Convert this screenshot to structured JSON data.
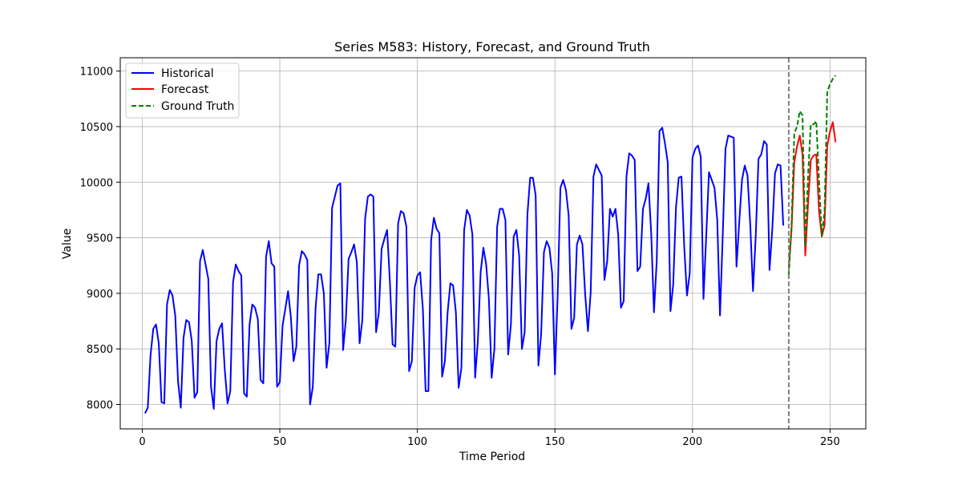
{
  "chart_data": {
    "type": "line",
    "title": "Series M583: History, Forecast, and Ground Truth",
    "xlabel": "Time Period",
    "ylabel": "Value",
    "xlim": [
      -8,
      263
    ],
    "ylim": [
      7780,
      11120
    ],
    "xticks": [
      0,
      50,
      100,
      150,
      200,
      250
    ],
    "xtick_labels": [
      "0",
      "50",
      "100",
      "150",
      "200",
      "250"
    ],
    "yticks": [
      8000,
      8500,
      9000,
      9500,
      10000,
      10500,
      11000
    ],
    "ytick_labels": [
      "8000",
      "8500",
      "9000",
      "9500",
      "10000",
      "10500",
      "11000"
    ],
    "grid": true,
    "legend_position": "top-left",
    "forecast_start_marker": 235,
    "series": [
      {
        "name": "Historical",
        "color": "#0000ff",
        "style": "solid",
        "x_start": 1,
        "values": [
          7920,
          7970,
          8440,
          8680,
          8720,
          8550,
          8020,
          8010,
          8900,
          9030,
          8980,
          8800,
          8210,
          7970,
          8600,
          8760,
          8740,
          8570,
          8060,
          8110,
          9290,
          9390,
          9260,
          9130,
          8160,
          7960,
          8570,
          8680,
          8730,
          8310,
          8010,
          8120,
          9100,
          9260,
          9200,
          9160,
          8100,
          8070,
          8720,
          8900,
          8870,
          8770,
          8220,
          8190,
          9330,
          9470,
          9270,
          9240,
          8160,
          8200,
          8710,
          8860,
          9020,
          8790,
          8390,
          8520,
          9250,
          9380,
          9350,
          9300,
          8000,
          8160,
          8870,
          9170,
          9170,
          9000,
          8330,
          8550,
          9770,
          9870,
          9970,
          9990,
          8490,
          8760,
          9310,
          9370,
          9440,
          9280,
          8550,
          8760,
          9670,
          9870,
          9890,
          9870,
          8650,
          8830,
          9400,
          9490,
          9570,
          9110,
          8540,
          8520,
          9630,
          9740,
          9720,
          9600,
          8300,
          8390,
          9050,
          9160,
          9190,
          8860,
          8120,
          8120,
          9480,
          9680,
          9580,
          9540,
          8250,
          8390,
          8830,
          9090,
          9070,
          8830,
          8150,
          8330,
          9570,
          9750,
          9700,
          9530,
          8240,
          8580,
          9190,
          9410,
          9260,
          8950,
          8240,
          8500,
          9600,
          9760,
          9760,
          9660,
          8450,
          8720,
          9510,
          9570,
          9340,
          8500,
          8650,
          9710,
          10040,
          10040,
          9880,
          8350,
          8640,
          9370,
          9470,
          9410,
          9180,
          8270,
          8990,
          9950,
          10020,
          9930,
          9700,
          8680,
          8780,
          9440,
          9520,
          9440,
          8990,
          8660,
          9010,
          10050,
          10160,
          10110,
          10060,
          9120,
          9290,
          9760,
          9690,
          9760,
          9530,
          8870,
          8930,
          10050,
          10260,
          10240,
          10200,
          9200,
          9240,
          9760,
          9850,
          9990,
          9540,
          8830,
          9290,
          10460,
          10490,
          10350,
          10180,
          8840,
          9080,
          9770,
          10040,
          10050,
          9420,
          8980,
          9180,
          10220,
          10300,
          10330,
          10230,
          8950,
          9520,
          10090,
          10020,
          9950,
          9660,
          8800,
          9520,
          10300,
          10420,
          10410,
          10400,
          9240,
          9640,
          10020,
          10150,
          10060,
          9620,
          9020,
          9520,
          10210,
          10250,
          10370,
          10340,
          9210,
          9570,
          10080,
          10160,
          10150,
          9610
        ]
      },
      {
        "name": "Forecast",
        "color": "#ff0000",
        "style": "solid",
        "x_start": 235,
        "values": [
          9230,
          9570,
          10180,
          10320,
          10420,
          10250,
          9340,
          9800,
          10200,
          10240,
          10250,
          9740,
          9510,
          9610,
          10330,
          10460,
          10540,
          10360
        ]
      },
      {
        "name": "Ground Truth",
        "color": "#008000",
        "style": "dashed",
        "x_start": 235,
        "values": [
          9160,
          9600,
          10440,
          10500,
          10640,
          10600,
          9420,
          10050,
          10520,
          10520,
          10550,
          10010,
          9520,
          9730,
          10820,
          10880,
          10930,
          10960
        ]
      }
    ]
  }
}
